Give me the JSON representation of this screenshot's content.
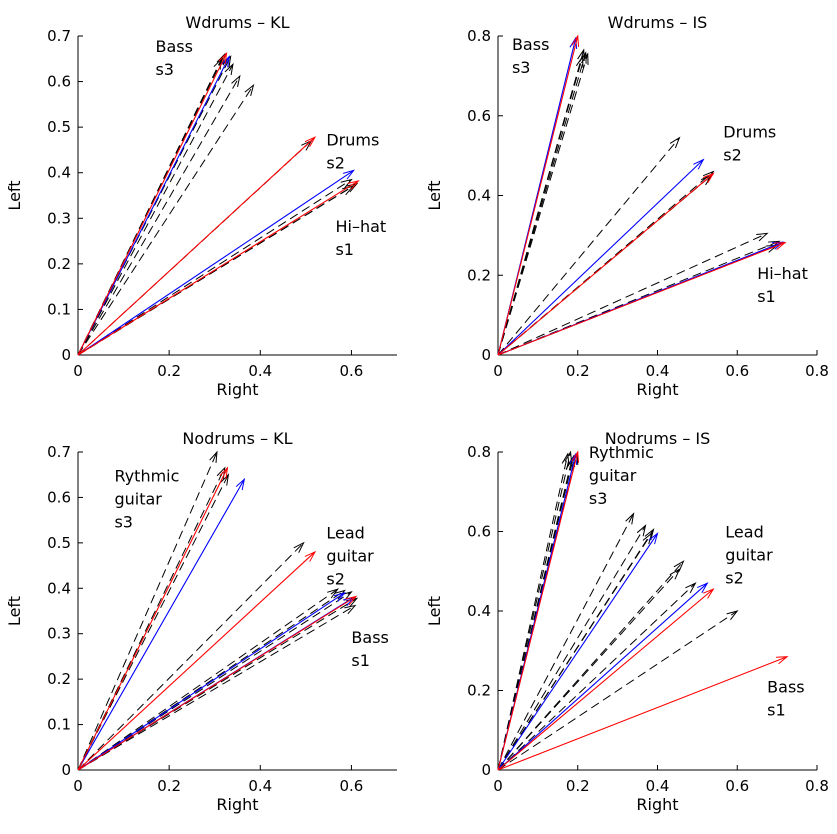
{
  "colors": {
    "black": "#000000",
    "blue": "#0000ff",
    "red": "#ff0000"
  },
  "chart_data": [
    {
      "type": "vector",
      "title": "Wdrums – KL",
      "xlabel": "Right",
      "ylabel": "Left",
      "xlim": [
        0,
        0.7
      ],
      "ylim": [
        0,
        0.7
      ],
      "xticks": [
        "0",
        "0.2",
        "0.4",
        "0.6"
      ],
      "yticks": [
        "0",
        "0.1",
        "0.2",
        "0.3",
        "0.4",
        "0.5",
        "0.6",
        "0.7"
      ],
      "sources": [
        {
          "lines": [
            "Hi–hat",
            "s1"
          ],
          "x": 0.565,
          "y": 0.27
        },
        {
          "lines": [
            "Drums",
            "s2"
          ],
          "x": 0.545,
          "y": 0.46
        },
        {
          "lines": [
            "Bass",
            "s3"
          ],
          "x": 0.17,
          "y": 0.665
        }
      ],
      "vectors": [
        {
          "color": "black",
          "dashed": true,
          "dx": 0.315,
          "dy": 0.65
        },
        {
          "color": "black",
          "dashed": true,
          "dx": 0.322,
          "dy": 0.66
        },
        {
          "color": "black",
          "dashed": true,
          "dx": 0.335,
          "dy": 0.655
        },
        {
          "color": "black",
          "dashed": true,
          "dx": 0.34,
          "dy": 0.638
        },
        {
          "color": "black",
          "dashed": true,
          "dx": 0.355,
          "dy": 0.612
        },
        {
          "color": "black",
          "dashed": true,
          "dx": 0.385,
          "dy": 0.592
        },
        {
          "color": "black",
          "dashed": true,
          "dx": 0.512,
          "dy": 0.47
        },
        {
          "color": "black",
          "dashed": true,
          "dx": 0.6,
          "dy": 0.385
        },
        {
          "color": "black",
          "dashed": true,
          "dx": 0.612,
          "dy": 0.376
        },
        {
          "color": "black",
          "dashed": true,
          "dx": 0.603,
          "dy": 0.37
        },
        {
          "color": "blue",
          "dashed": false,
          "dx": 0.332,
          "dy": 0.655
        },
        {
          "color": "blue",
          "dashed": false,
          "dx": 0.605,
          "dy": 0.405
        },
        {
          "color": "red",
          "dashed": false,
          "dx": 0.326,
          "dy": 0.662
        },
        {
          "color": "red",
          "dashed": false,
          "dx": 0.52,
          "dy": 0.478
        },
        {
          "color": "red",
          "dashed": false,
          "dx": 0.615,
          "dy": 0.382
        }
      ]
    },
    {
      "type": "vector",
      "title": "Wdrums – IS",
      "xlabel": "Right",
      "ylabel": "Left",
      "xlim": [
        0,
        0.8
      ],
      "ylim": [
        0,
        0.8
      ],
      "xticks": [
        "0",
        "0.2",
        "0.4",
        "0.6",
        "0.8"
      ],
      "yticks": [
        "0",
        "0.2",
        "0.4",
        "0.6",
        "0.8"
      ],
      "sources": [
        {
          "lines": [
            "Hi–hat",
            "s1"
          ],
          "x": 0.65,
          "y": 0.19
        },
        {
          "lines": [
            "Drums",
            "s2"
          ],
          "x": 0.565,
          "y": 0.545
        },
        {
          "lines": [
            "Bass",
            "s3"
          ],
          "x": 0.035,
          "y": 0.765
        }
      ],
      "vectors": [
        {
          "color": "black",
          "dashed": true,
          "dx": 0.215,
          "dy": 0.765
        },
        {
          "color": "black",
          "dashed": true,
          "dx": 0.22,
          "dy": 0.758
        },
        {
          "color": "black",
          "dashed": true,
          "dx": 0.212,
          "dy": 0.748
        },
        {
          "color": "black",
          "dashed": true,
          "dx": 0.225,
          "dy": 0.755
        },
        {
          "color": "black",
          "dashed": true,
          "dx": 0.455,
          "dy": 0.545
        },
        {
          "color": "black",
          "dashed": true,
          "dx": 0.54,
          "dy": 0.46
        },
        {
          "color": "black",
          "dashed": true,
          "dx": 0.535,
          "dy": 0.45
        },
        {
          "color": "black",
          "dashed": true,
          "dx": 0.675,
          "dy": 0.305
        },
        {
          "color": "black",
          "dashed": true,
          "dx": 0.705,
          "dy": 0.285
        },
        {
          "color": "black",
          "dashed": true,
          "dx": 0.7,
          "dy": 0.275
        },
        {
          "color": "blue",
          "dashed": false,
          "dx": 0.195,
          "dy": 0.795
        },
        {
          "color": "blue",
          "dashed": false,
          "dx": 0.515,
          "dy": 0.49
        },
        {
          "color": "blue",
          "dashed": false,
          "dx": 0.715,
          "dy": 0.283
        },
        {
          "color": "red",
          "dashed": false,
          "dx": 0.2,
          "dy": 0.8
        },
        {
          "color": "red",
          "dashed": false,
          "dx": 0.54,
          "dy": 0.455
        },
        {
          "color": "red",
          "dashed": false,
          "dx": 0.72,
          "dy": 0.282
        }
      ]
    },
    {
      "type": "vector",
      "title": "Nodrums – KL",
      "xlabel": "Right",
      "ylabel": "Left",
      "xlim": [
        0,
        0.7
      ],
      "ylim": [
        0,
        0.7
      ],
      "xticks": [
        "0",
        "0.2",
        "0.4",
        "0.6"
      ],
      "yticks": [
        "0",
        "0.1",
        "0.2",
        "0.3",
        "0.4",
        "0.5",
        "0.6",
        "0.7"
      ],
      "sources": [
        {
          "lines": [
            "Bass",
            "s1"
          ],
          "x": 0.6,
          "y": 0.28
        },
        {
          "lines": [
            "Lead",
            "guitar",
            "s2"
          ],
          "x": 0.545,
          "y": 0.51
        },
        {
          "lines": [
            "Rythmic",
            "guitar",
            "s3"
          ],
          "x": 0.08,
          "y": 0.635
        }
      ],
      "vectors": [
        {
          "color": "black",
          "dashed": true,
          "dx": 0.305,
          "dy": 0.7
        },
        {
          "color": "black",
          "dashed": true,
          "dx": 0.322,
          "dy": 0.665
        },
        {
          "color": "black",
          "dashed": true,
          "dx": 0.33,
          "dy": 0.65
        },
        {
          "color": "black",
          "dashed": true,
          "dx": 0.495,
          "dy": 0.5
        },
        {
          "color": "black",
          "dashed": true,
          "dx": 0.57,
          "dy": 0.398
        },
        {
          "color": "black",
          "dashed": true,
          "dx": 0.585,
          "dy": 0.395
        },
        {
          "color": "black",
          "dashed": true,
          "dx": 0.6,
          "dy": 0.392
        },
        {
          "color": "black",
          "dashed": true,
          "dx": 0.612,
          "dy": 0.378
        },
        {
          "color": "black",
          "dashed": true,
          "dx": 0.608,
          "dy": 0.362
        },
        {
          "color": "blue",
          "dashed": false,
          "dx": 0.365,
          "dy": 0.64
        },
        {
          "color": "blue",
          "dashed": false,
          "dx": 0.585,
          "dy": 0.39
        },
        {
          "color": "blue",
          "dashed": false,
          "dx": 0.605,
          "dy": 0.38
        },
        {
          "color": "red",
          "dashed": false,
          "dx": 0.328,
          "dy": 0.665
        },
        {
          "color": "red",
          "dashed": false,
          "dx": 0.52,
          "dy": 0.48
        },
        {
          "color": "red",
          "dashed": false,
          "dx": 0.61,
          "dy": 0.382
        }
      ]
    },
    {
      "type": "vector",
      "title": "Nodrums – IS",
      "xlabel": "Right",
      "ylabel": "Left",
      "xlim": [
        0,
        0.8
      ],
      "ylim": [
        0,
        0.8
      ],
      "xticks": [
        "0",
        "0.2",
        "0.4",
        "0.6",
        "0.8"
      ],
      "yticks": [
        "0",
        "0.2",
        "0.4",
        "0.6",
        "0.8"
      ],
      "sources": [
        {
          "lines": [
            "Bass",
            "s1"
          ],
          "x": 0.675,
          "y": 0.195
        },
        {
          "lines": [
            "Lead",
            "guitar",
            "s2"
          ],
          "x": 0.57,
          "y": 0.585
        },
        {
          "lines": [
            "Rythmic",
            "guitar",
            "s3"
          ],
          "x": 0.228,
          "y": 0.785
        }
      ],
      "vectors": [
        {
          "color": "black",
          "dashed": true,
          "dx": 0.175,
          "dy": 0.795
        },
        {
          "color": "black",
          "dashed": true,
          "dx": 0.182,
          "dy": 0.8
        },
        {
          "color": "black",
          "dashed": true,
          "dx": 0.19,
          "dy": 0.79
        },
        {
          "color": "black",
          "dashed": true,
          "dx": 0.198,
          "dy": 0.795
        },
        {
          "color": "black",
          "dashed": true,
          "dx": 0.185,
          "dy": 0.78
        },
        {
          "color": "black",
          "dashed": true,
          "dx": 0.34,
          "dy": 0.645
        },
        {
          "color": "black",
          "dashed": true,
          "dx": 0.37,
          "dy": 0.615
        },
        {
          "color": "black",
          "dashed": true,
          "dx": 0.39,
          "dy": 0.605
        },
        {
          "color": "black",
          "dashed": true,
          "dx": 0.385,
          "dy": 0.595
        },
        {
          "color": "black",
          "dashed": true,
          "dx": 0.465,
          "dy": 0.525
        },
        {
          "color": "black",
          "dashed": true,
          "dx": 0.455,
          "dy": 0.505
        },
        {
          "color": "black",
          "dashed": true,
          "dx": 0.495,
          "dy": 0.47
        },
        {
          "color": "black",
          "dashed": true,
          "dx": 0.6,
          "dy": 0.4
        },
        {
          "color": "blue",
          "dashed": false,
          "dx": 0.195,
          "dy": 0.795
        },
        {
          "color": "blue",
          "dashed": false,
          "dx": 0.4,
          "dy": 0.595
        },
        {
          "color": "blue",
          "dashed": false,
          "dx": 0.525,
          "dy": 0.47
        },
        {
          "color": "red",
          "dashed": false,
          "dx": 0.2,
          "dy": 0.8
        },
        {
          "color": "red",
          "dashed": false,
          "dx": 0.54,
          "dy": 0.455
        },
        {
          "color": "red",
          "dashed": false,
          "dx": 0.725,
          "dy": 0.285
        }
      ]
    }
  ]
}
